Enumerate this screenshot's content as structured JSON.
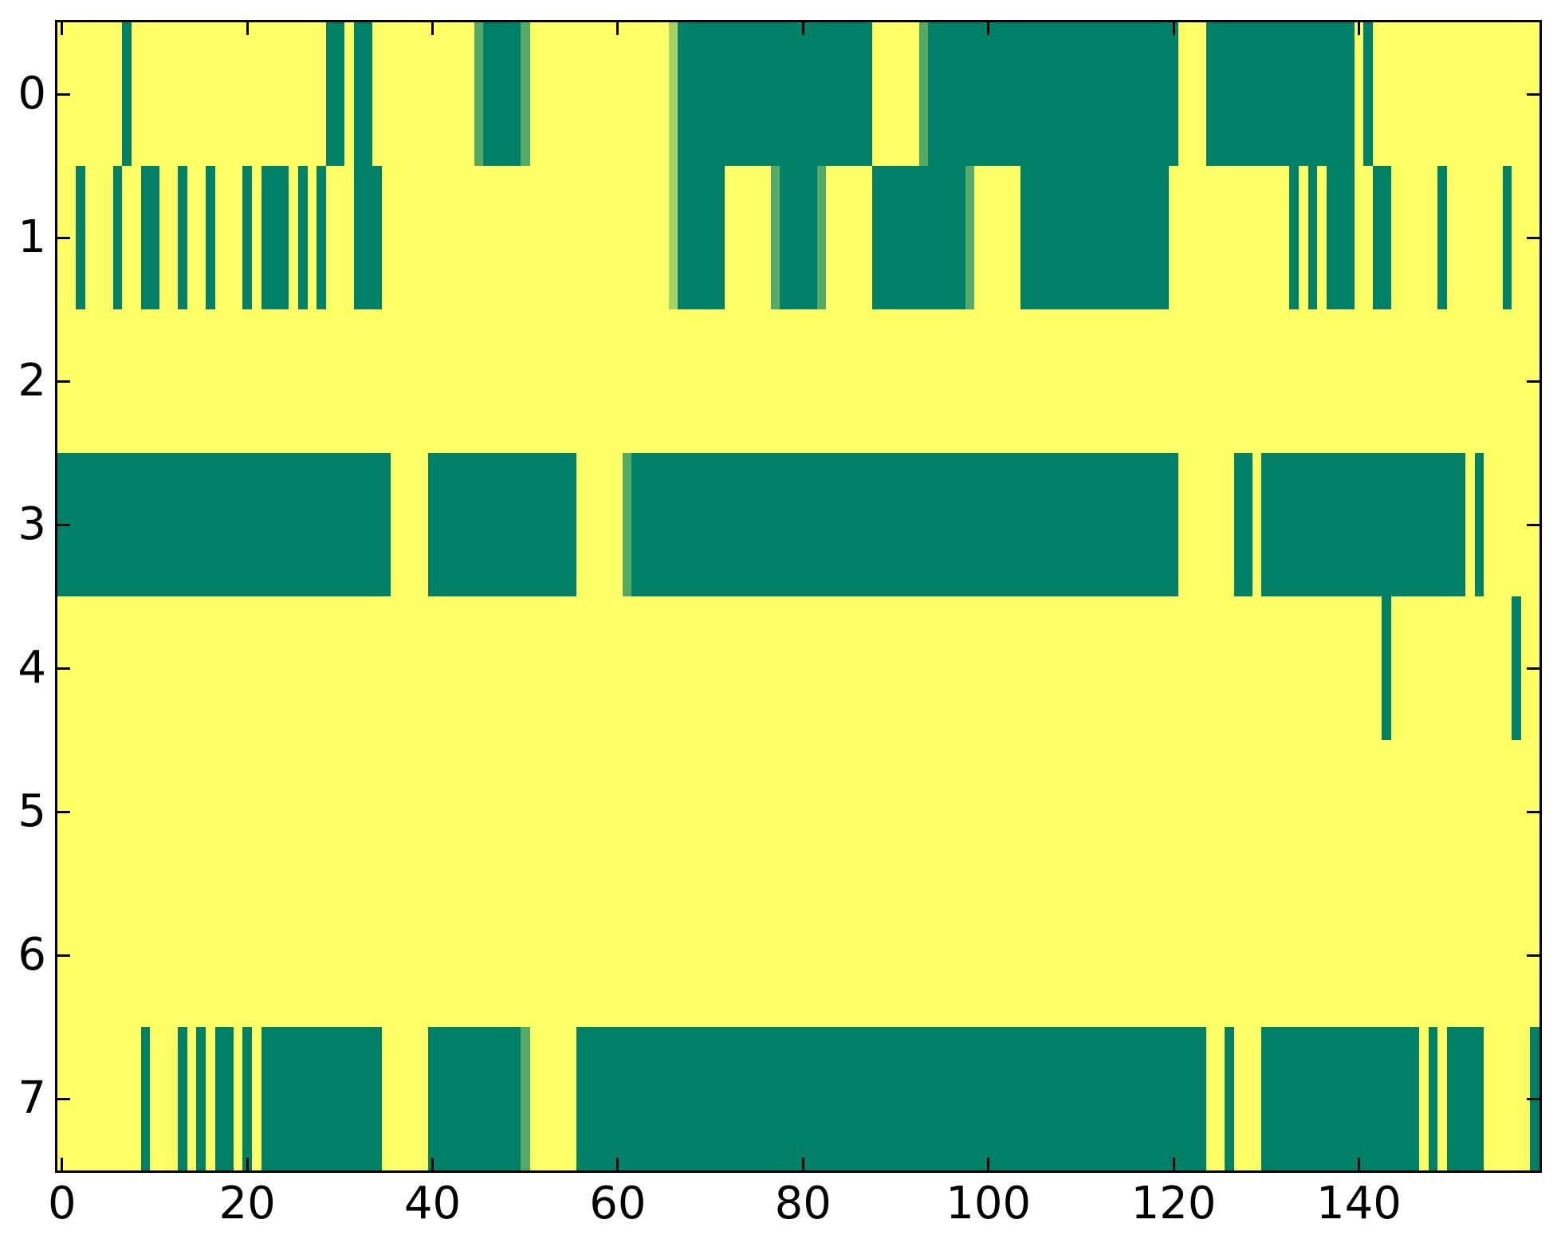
{
  "figure": {
    "background": "#ffffff",
    "title": ""
  },
  "colors": {
    "background_yellow": "#FFFF66",
    "dark_green": "#008066",
    "mid_green": "#54AA66",
    "light_green": "#A6D366",
    "axis_black": "#000000"
  },
  "x_axis": {
    "tick_values": [
      0,
      20,
      40,
      60,
      80,
      100,
      120,
      140
    ],
    "tick_labels": [
      "0",
      "20",
      "40",
      "60",
      "80",
      "100",
      "120",
      "140"
    ],
    "range": [
      -0.5,
      159.5
    ]
  },
  "y_axis": {
    "tick_values": [
      0,
      1,
      2,
      3,
      4,
      5,
      6,
      7
    ],
    "tick_labels": [
      "0",
      "1",
      "2",
      "3",
      "4",
      "5",
      "6",
      "7"
    ],
    "range": [
      -0.5,
      7.5
    ]
  },
  "chart_data": {
    "type": "heatmap",
    "colormap": "summer (yellow = high/1.0, dark teal = low/0.0)",
    "n_rows": 8,
    "n_cols": 160,
    "xlabel": "",
    "ylabel": "",
    "title": "",
    "grid": false,
    "legend": "none",
    "tone_legend": {
      "d": "dark_green (value ~0.0)",
      "m": "mid_green (value ~0.35)",
      "l": "light_green (value ~0.65)",
      "background": "background_yellow (value ~1.0)"
    },
    "rows": [
      {
        "label": "0",
        "segments": [
          [
            7,
            7,
            "d"
          ],
          [
            29,
            30,
            "d"
          ],
          [
            32,
            33,
            "d"
          ],
          [
            45,
            45,
            "m"
          ],
          [
            46,
            49,
            "d"
          ],
          [
            50,
            50,
            "m"
          ],
          [
            66,
            66,
            "l"
          ],
          [
            67,
            87,
            "d"
          ],
          [
            93,
            93,
            "m"
          ],
          [
            94,
            120,
            "d"
          ],
          [
            124,
            139,
            "d"
          ],
          [
            141,
            141,
            "d"
          ]
        ]
      },
      {
        "label": "1",
        "segments": [
          [
            2,
            2,
            "d"
          ],
          [
            6,
            6,
            "d"
          ],
          [
            9,
            10,
            "d"
          ],
          [
            13,
            13,
            "d"
          ],
          [
            16,
            16,
            "d"
          ],
          [
            20,
            20,
            "d"
          ],
          [
            22,
            24,
            "d"
          ],
          [
            26,
            26,
            "d"
          ],
          [
            28,
            28,
            "d"
          ],
          [
            32,
            34,
            "d"
          ],
          [
            66,
            66,
            "l"
          ],
          [
            67,
            71,
            "d"
          ],
          [
            77,
            77,
            "m"
          ],
          [
            78,
            81,
            "d"
          ],
          [
            82,
            82,
            "m"
          ],
          [
            88,
            97,
            "d"
          ],
          [
            98,
            98,
            "m"
          ],
          [
            104,
            119,
            "d"
          ],
          [
            133,
            133,
            "d"
          ],
          [
            135,
            135,
            "d"
          ],
          [
            137,
            139,
            "d"
          ],
          [
            142,
            143,
            "d"
          ],
          [
            149,
            149,
            "d"
          ],
          [
            156,
            156,
            "d"
          ]
        ]
      },
      {
        "label": "2",
        "segments": []
      },
      {
        "label": "3",
        "segments": [
          [
            0,
            35,
            "d"
          ],
          [
            40,
            55,
            "d"
          ],
          [
            61,
            61,
            "m"
          ],
          [
            62,
            120,
            "d"
          ],
          [
            127,
            128,
            "d"
          ],
          [
            130,
            151,
            "d"
          ],
          [
            153,
            153,
            "d"
          ]
        ]
      },
      {
        "label": "4",
        "segments": [
          [
            143,
            143,
            "d"
          ],
          [
            157,
            157,
            "d"
          ]
        ]
      },
      {
        "label": "5",
        "segments": []
      },
      {
        "label": "6",
        "segments": []
      },
      {
        "label": "7",
        "segments": [
          [
            9,
            9,
            "d"
          ],
          [
            13,
            13,
            "d"
          ],
          [
            15,
            15,
            "d"
          ],
          [
            17,
            18,
            "d"
          ],
          [
            20,
            20,
            "d"
          ],
          [
            22,
            34,
            "d"
          ],
          [
            40,
            49,
            "d"
          ],
          [
            50,
            50,
            "m"
          ],
          [
            56,
            123,
            "d"
          ],
          [
            126,
            126,
            "d"
          ],
          [
            130,
            146,
            "d"
          ],
          [
            148,
            148,
            "d"
          ],
          [
            150,
            153,
            "d"
          ],
          [
            159,
            159,
            "d"
          ]
        ]
      }
    ]
  }
}
